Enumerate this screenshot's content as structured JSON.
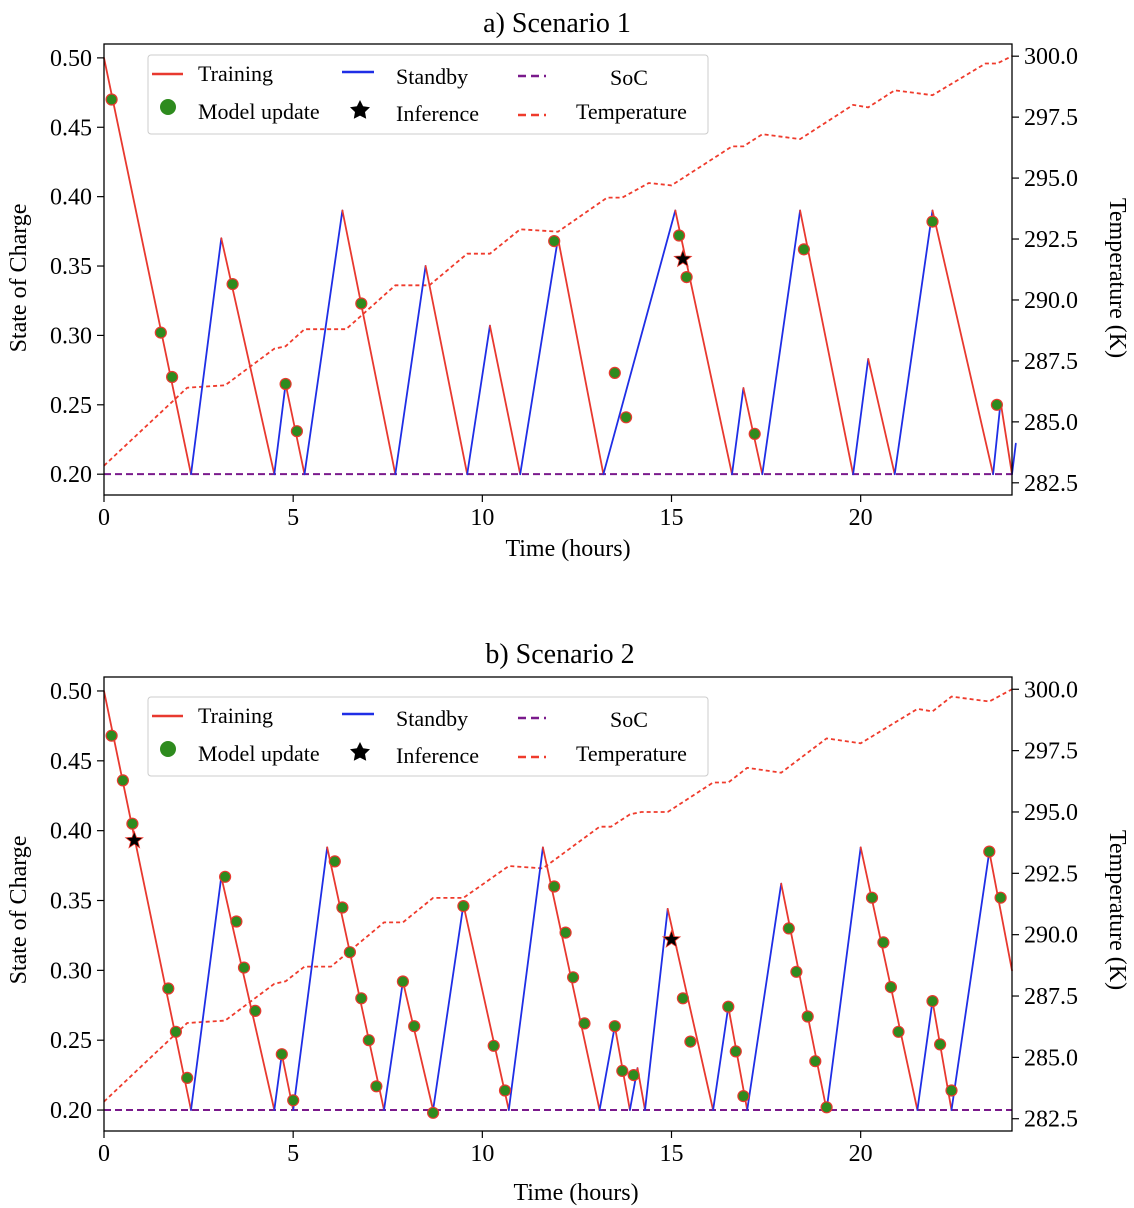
{
  "colors": {
    "training": "#e8392f",
    "standby": "#1f2ee6",
    "soc": "#7a1a8c",
    "temperature": "#ef3b2c",
    "update_fill": "#2e8b1e",
    "inference": "#000000"
  },
  "legend": {
    "training": "Training",
    "model_update": "Model update",
    "standby": "Standby",
    "inference": "Inference",
    "soc": "SoC",
    "temperature": "Temperature"
  },
  "chart_data": [
    {
      "type": "line",
      "title": "a) Scenario 1",
      "xlabel": "Time (hours)",
      "ylabel": "State of Charge",
      "y2label": "Temperature (K)",
      "xlim": [
        0,
        24
      ],
      "ylim": [
        0.185,
        0.51
      ],
      "y2lim": [
        282.0,
        300.5
      ],
      "xticks": [
        "0",
        "5",
        "10",
        "15",
        "20"
      ],
      "yticks": [
        "0.20",
        "0.25",
        "0.30",
        "0.35",
        "0.40",
        "0.45",
        "0.50"
      ],
      "y2ticks": [
        "282.5",
        "285.0",
        "287.5",
        "290.0",
        "292.5",
        "295.0",
        "297.5",
        "300.0"
      ],
      "legend_position": "top",
      "soc_limit": 0.2,
      "soc_path": [
        [
          0,
          0.5
        ],
        [
          2.3,
          0.2
        ],
        [
          3.1,
          0.37
        ],
        [
          4.5,
          0.2
        ],
        [
          4.8,
          0.265
        ],
        [
          5.3,
          0.2
        ],
        [
          6.3,
          0.39
        ],
        [
          7.7,
          0.2
        ],
        [
          8.5,
          0.35
        ],
        [
          9.6,
          0.2
        ],
        [
          10.2,
          0.307
        ],
        [
          11.0,
          0.2
        ],
        [
          12.0,
          0.37
        ],
        [
          13.2,
          0.2
        ],
        [
          15.1,
          0.39
        ],
        [
          16.6,
          0.2
        ],
        [
          16.9,
          0.262
        ],
        [
          17.4,
          0.2
        ],
        [
          18.4,
          0.39
        ],
        [
          19.8,
          0.2
        ],
        [
          20.2,
          0.283
        ],
        [
          20.9,
          0.2
        ],
        [
          21.9,
          0.39
        ],
        [
          23.5,
          0.2
        ],
        [
          23.7,
          0.252
        ],
        [
          24.0,
          0.2
        ],
        [
          24.1,
          0.222
        ]
      ],
      "model_updates": [
        [
          0.2,
          0.47
        ],
        [
          1.5,
          0.302
        ],
        [
          1.8,
          0.27
        ],
        [
          3.4,
          0.337
        ],
        [
          4.8,
          0.265
        ],
        [
          5.1,
          0.231
        ],
        [
          6.8,
          0.323
        ],
        [
          11.9,
          0.368
        ],
        [
          13.5,
          0.273
        ],
        [
          13.8,
          0.241
        ],
        [
          15.2,
          0.372
        ],
        [
          15.4,
          0.342
        ],
        [
          17.2,
          0.229
        ],
        [
          18.5,
          0.362
        ],
        [
          21.9,
          0.382
        ],
        [
          23.6,
          0.25
        ]
      ],
      "inference": [
        [
          15.3,
          0.355
        ]
      ],
      "temperature": [
        [
          0,
          283.2
        ],
        [
          2.2,
          286.4
        ],
        [
          3.2,
          286.5
        ],
        [
          4.5,
          288.0
        ],
        [
          4.8,
          288.1
        ],
        [
          5.3,
          288.8
        ],
        [
          6.4,
          288.8
        ],
        [
          7.7,
          290.6
        ],
        [
          8.6,
          290.6
        ],
        [
          9.6,
          291.9
        ],
        [
          10.2,
          291.9
        ],
        [
          11.0,
          292.9
        ],
        [
          12.0,
          292.8
        ],
        [
          13.3,
          294.2
        ],
        [
          13.7,
          294.2
        ],
        [
          14.4,
          294.8
        ],
        [
          15.0,
          294.7
        ],
        [
          16.6,
          296.3
        ],
        [
          16.9,
          296.3
        ],
        [
          17.4,
          296.8
        ],
        [
          18.4,
          296.6
        ],
        [
          19.8,
          298.0
        ],
        [
          20.2,
          297.9
        ],
        [
          20.9,
          298.6
        ],
        [
          21.9,
          298.4
        ],
        [
          23.3,
          299.7
        ],
        [
          23.6,
          299.7
        ],
        [
          24.0,
          300.0
        ]
      ]
    },
    {
      "type": "line",
      "title": "b) Scenario 2",
      "xlabel": "Time (hours)",
      "ylabel": "State of Charge",
      "y2label": "Temperature (K)",
      "xlim": [
        0,
        24
      ],
      "ylim": [
        0.185,
        0.51
      ],
      "y2lim": [
        282.0,
        300.5
      ],
      "xticks": [
        "0",
        "5",
        "10",
        "15",
        "20"
      ],
      "yticks": [
        "0.20",
        "0.25",
        "0.30",
        "0.35",
        "0.40",
        "0.45",
        "0.50"
      ],
      "y2ticks": [
        "282.5",
        "285.0",
        "287.5",
        "290.0",
        "292.5",
        "295.0",
        "297.5",
        "300.0"
      ],
      "legend_position": "top",
      "soc_limit": 0.2,
      "soc_path": [
        [
          0,
          0.5
        ],
        [
          2.3,
          0.2
        ],
        [
          3.1,
          0.367
        ],
        [
          4.5,
          0.2
        ],
        [
          4.7,
          0.24
        ],
        [
          5.0,
          0.2
        ],
        [
          5.9,
          0.388
        ],
        [
          7.4,
          0.2
        ],
        [
          7.9,
          0.292
        ],
        [
          8.7,
          0.2
        ],
        [
          9.5,
          0.347
        ],
        [
          10.7,
          0.2
        ],
        [
          11.6,
          0.388
        ],
        [
          13.1,
          0.2
        ],
        [
          13.5,
          0.26
        ],
        [
          13.9,
          0.2
        ],
        [
          14.1,
          0.23
        ],
        [
          14.3,
          0.2
        ],
        [
          14.9,
          0.344
        ],
        [
          16.1,
          0.2
        ],
        [
          16.5,
          0.274
        ],
        [
          17.0,
          0.2
        ],
        [
          17.9,
          0.362
        ],
        [
          19.1,
          0.2
        ],
        [
          20.0,
          0.388
        ],
        [
          21.5,
          0.2
        ],
        [
          21.9,
          0.278
        ],
        [
          22.4,
          0.2
        ],
        [
          23.4,
          0.385
        ],
        [
          24.0,
          0.3
        ]
      ],
      "model_updates": [
        [
          0.2,
          0.468
        ],
        [
          0.5,
          0.436
        ],
        [
          0.75,
          0.405
        ],
        [
          1.7,
          0.287
        ],
        [
          1.9,
          0.256
        ],
        [
          2.2,
          0.223
        ],
        [
          3.2,
          0.367
        ],
        [
          3.5,
          0.335
        ],
        [
          3.7,
          0.302
        ],
        [
          4.0,
          0.271
        ],
        [
          4.7,
          0.24
        ],
        [
          5.0,
          0.207
        ],
        [
          6.1,
          0.378
        ],
        [
          6.3,
          0.345
        ],
        [
          6.5,
          0.313
        ],
        [
          6.8,
          0.28
        ],
        [
          7.0,
          0.25
        ],
        [
          7.2,
          0.217
        ],
        [
          7.9,
          0.292
        ],
        [
          8.2,
          0.26
        ],
        [
          8.7,
          0.198
        ],
        [
          9.5,
          0.346
        ],
        [
          10.3,
          0.246
        ],
        [
          10.6,
          0.214
        ],
        [
          11.9,
          0.36
        ],
        [
          12.2,
          0.327
        ],
        [
          12.4,
          0.295
        ],
        [
          12.7,
          0.262
        ],
        [
          13.5,
          0.26
        ],
        [
          13.7,
          0.228
        ],
        [
          14.0,
          0.225
        ],
        [
          15.3,
          0.28
        ],
        [
          15.5,
          0.249
        ],
        [
          16.5,
          0.274
        ],
        [
          16.7,
          0.242
        ],
        [
          16.9,
          0.21
        ],
        [
          18.1,
          0.33
        ],
        [
          18.3,
          0.299
        ],
        [
          18.6,
          0.267
        ],
        [
          18.8,
          0.235
        ],
        [
          19.1,
          0.202
        ],
        [
          20.3,
          0.352
        ],
        [
          20.6,
          0.32
        ],
        [
          20.8,
          0.288
        ],
        [
          21.0,
          0.256
        ],
        [
          21.9,
          0.278
        ],
        [
          22.1,
          0.247
        ],
        [
          22.4,
          0.214
        ],
        [
          23.4,
          0.385
        ],
        [
          23.7,
          0.352
        ]
      ],
      "inference": [
        [
          0.8,
          0.393
        ],
        [
          15.0,
          0.322
        ]
      ],
      "temperature": [
        [
          0,
          283.2
        ],
        [
          2.2,
          286.4
        ],
        [
          3.2,
          286.5
        ],
        [
          4.5,
          288.0
        ],
        [
          4.8,
          288.1
        ],
        [
          5.3,
          288.7
        ],
        [
          6.0,
          288.7
        ],
        [
          7.4,
          290.5
        ],
        [
          7.9,
          290.5
        ],
        [
          8.7,
          291.5
        ],
        [
          9.5,
          291.5
        ],
        [
          10.7,
          292.8
        ],
        [
          11.6,
          292.7
        ],
        [
          13.1,
          294.4
        ],
        [
          13.4,
          294.4
        ],
        [
          13.9,
          294.9
        ],
        [
          14.2,
          295.0
        ],
        [
          14.9,
          295.0
        ],
        [
          16.1,
          296.2
        ],
        [
          16.5,
          296.2
        ],
        [
          17.0,
          296.8
        ],
        [
          17.9,
          296.6
        ],
        [
          19.1,
          298.0
        ],
        [
          20.0,
          297.8
        ],
        [
          21.5,
          299.2
        ],
        [
          21.9,
          299.1
        ],
        [
          22.4,
          299.7
        ],
        [
          23.4,
          299.5
        ],
        [
          24.0,
          300.0
        ]
      ]
    }
  ]
}
